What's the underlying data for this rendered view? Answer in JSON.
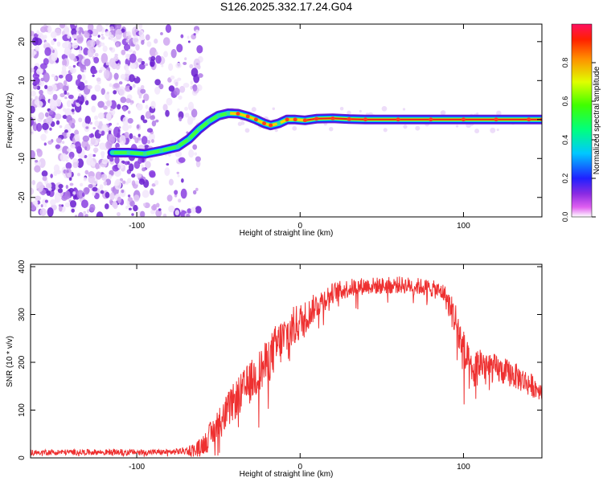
{
  "title": "S126.2025.332.17.24.G04",
  "colors": {
    "snr_line": "#ee3030",
    "track_core": "#e52020",
    "scatter": "#8a3fe0",
    "background": "#ffffff",
    "axis": "#000000"
  },
  "chart_data": [
    {
      "type": "heatmap",
      "title": "S126.2025.332.17.24.G04",
      "xlabel": "Height of straight line (km)",
      "ylabel": "Frequency (Hz)",
      "xlim": [
        -165,
        148
      ],
      "ylim": [
        -25,
        24.5
      ],
      "xticks": [
        -100,
        0,
        100
      ],
      "xtick_labels": [
        "-100",
        "0",
        "100"
      ],
      "yticks": [
        -20,
        -10,
        0,
        10,
        20
      ],
      "ytick_labels": [
        "-20",
        "-10",
        "0",
        "10",
        "20"
      ],
      "colorbar": {
        "label": "Normalized spectral amplitude",
        "range": [
          0,
          1
        ],
        "ticks": [
          0.0,
          0.2,
          0.4,
          0.6,
          0.8
        ],
        "tick_labels": [
          "0.0",
          "0.2",
          "0.4",
          "0.6",
          "0.8"
        ]
      },
      "noise_region_x": [
        -165,
        -70
      ],
      "track": [
        {
          "x": -115,
          "y": -8.5,
          "a": 0.55
        },
        {
          "x": -105,
          "y": -8.5,
          "a": 0.5
        },
        {
          "x": -95,
          "y": -8.8,
          "a": 0.45
        },
        {
          "x": -85,
          "y": -8.0,
          "a": 0.5
        },
        {
          "x": -75,
          "y": -7.0,
          "a": 0.55
        },
        {
          "x": -68,
          "y": -5.0,
          "a": 0.6
        },
        {
          "x": -62,
          "y": -2.5,
          "a": 0.6
        },
        {
          "x": -56,
          "y": -0.5,
          "a": 0.65
        },
        {
          "x": -50,
          "y": 1.0,
          "a": 0.7
        },
        {
          "x": -44,
          "y": 1.6,
          "a": 0.75
        },
        {
          "x": -38,
          "y": 1.5,
          "a": 0.8
        },
        {
          "x": -32,
          "y": 0.8,
          "a": 0.8
        },
        {
          "x": -27,
          "y": 0.0,
          "a": 0.85
        },
        {
          "x": -22,
          "y": -1.0,
          "a": 0.85
        },
        {
          "x": -18,
          "y": -1.5,
          "a": 0.8
        },
        {
          "x": -13,
          "y": -1.0,
          "a": 0.75
        },
        {
          "x": -8,
          "y": 0.0,
          "a": 0.8
        },
        {
          "x": -3,
          "y": 0.0,
          "a": 0.85
        },
        {
          "x": 3,
          "y": -0.2,
          "a": 0.9
        },
        {
          "x": 10,
          "y": 0.2,
          "a": 0.95
        },
        {
          "x": 20,
          "y": 0.3,
          "a": 0.95
        },
        {
          "x": 30,
          "y": 0.1,
          "a": 0.95
        },
        {
          "x": 40,
          "y": 0.0,
          "a": 1.0
        },
        {
          "x": 60,
          "y": 0.0,
          "a": 1.0
        },
        {
          "x": 80,
          "y": 0.0,
          "a": 1.0
        },
        {
          "x": 100,
          "y": 0.0,
          "a": 1.0
        },
        {
          "x": 120,
          "y": 0.0,
          "a": 1.0
        },
        {
          "x": 140,
          "y": 0.0,
          "a": 1.0
        },
        {
          "x": 148,
          "y": 0.0,
          "a": 1.0
        }
      ]
    },
    {
      "type": "line",
      "xlabel": "Height of straight line (km)",
      "ylabel": "SNR (10 * v/v)",
      "xlim": [
        -165,
        148
      ],
      "ylim": [
        0,
        405
      ],
      "xticks": [
        -100,
        0,
        100
      ],
      "xtick_labels": [
        "-100",
        "0",
        "100"
      ],
      "yticks": [
        0,
        100,
        200,
        300,
        400
      ],
      "ytick_labels": [
        "0",
        "100",
        "200",
        "300",
        "400"
      ],
      "x": [
        -165,
        -140,
        -120,
        -100,
        -80,
        -70,
        -62,
        -55,
        -50,
        -40,
        -30,
        -20,
        -15,
        -10,
        -5,
        0,
        5,
        10,
        20,
        30,
        40,
        50,
        60,
        70,
        80,
        88,
        95,
        100,
        105,
        110,
        120,
        130,
        140,
        148
      ],
      "values": [
        12,
        12,
        12,
        12,
        12,
        15,
        20,
        45,
        70,
        120,
        160,
        200,
        230,
        250,
        270,
        285,
        300,
        320,
        345,
        355,
        360,
        360,
        362,
        360,
        355,
        345,
        290,
        220,
        170,
        200,
        185,
        175,
        155,
        140
      ],
      "noise": [
        6,
        6,
        6,
        6,
        6,
        8,
        18,
        30,
        35,
        40,
        45,
        48,
        50,
        50,
        45,
        40,
        32,
        28,
        22,
        20,
        18,
        18,
        18,
        18,
        18,
        20,
        40,
        50,
        45,
        40,
        30,
        28,
        26,
        20
      ]
    }
  ]
}
